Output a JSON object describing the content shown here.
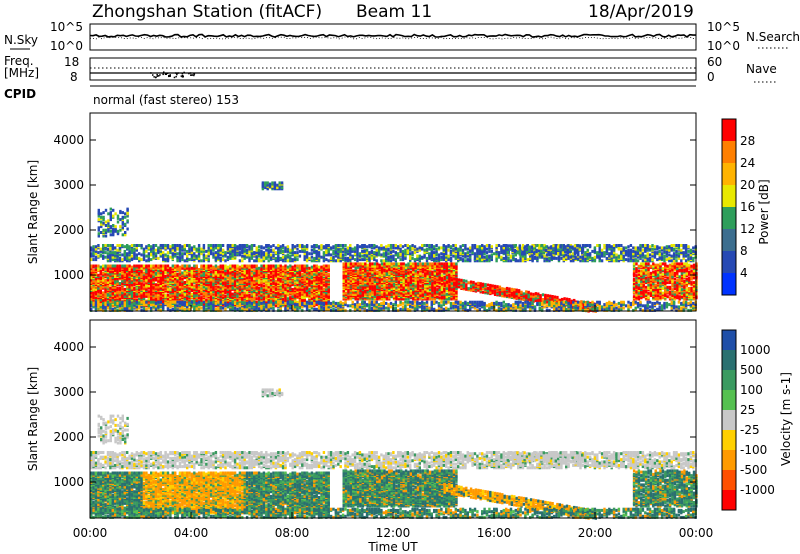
{
  "header": {
    "station": "Zhongshan Station (fitACF)",
    "beam": "Beam 11",
    "date": "18/Apr/2019"
  },
  "sky_panel": {
    "left_label": "N.Sky",
    "right_label": "N.Search",
    "left_ticks": [
      "10^5",
      "10^0"
    ],
    "right_ticks": [
      "10^5",
      "10^0"
    ]
  },
  "freq_panel": {
    "left_label_1": "Freq.",
    "left_label_2": "[MHz]",
    "left_ticks": [
      "18",
      "8"
    ],
    "right_label": "Nave",
    "right_ticks": [
      "60",
      "0"
    ],
    "cpid_label": "CPID"
  },
  "mode_text": "normal (fast stereo) 153",
  "chart_data": [
    {
      "type": "heatmap",
      "name": "power",
      "ylabel": "Slant Range [km]",
      "y_ticks": [
        "4000",
        "3000",
        "2000",
        "1000"
      ],
      "ylim": [
        200,
        4600
      ],
      "xlim_hours": [
        0,
        24
      ],
      "colorbar_label": "Power [dB]",
      "colorbar_ticks": [
        "28",
        "24",
        "20",
        "16",
        "12",
        "8",
        "4"
      ],
      "colorbar_colors": [
        "#ff0000",
        "#ff7f00",
        "#ffb300",
        "#e8e800",
        "#2e9e5b",
        "#3c6e8f",
        "#2649b4",
        "#0033ff"
      ]
    },
    {
      "type": "heatmap",
      "name": "velocity",
      "ylabel": "Slant Range [km]",
      "y_ticks": [
        "4000",
        "3000",
        "2000",
        "1000"
      ],
      "ylim": [
        200,
        4600
      ],
      "xlim_hours": [
        0,
        24
      ],
      "xlabel": "Time UT",
      "x_ticks": [
        "00:00",
        "04:00",
        "08:00",
        "12:00",
        "16:00",
        "20:00",
        "00:00"
      ],
      "colorbar_label": "Velocity [m s-1]",
      "colorbar_ticks": [
        "1000",
        "500",
        "100",
        "25",
        "-25",
        "-100",
        "-500",
        "-1000"
      ],
      "colorbar_colors": [
        "#1f4fa8",
        "#2a7070",
        "#3a9a60",
        "#55c050",
        "#c8c8c8",
        "#ffd000",
        "#ff9a00",
        "#ff5000",
        "#ff0000"
      ]
    }
  ]
}
